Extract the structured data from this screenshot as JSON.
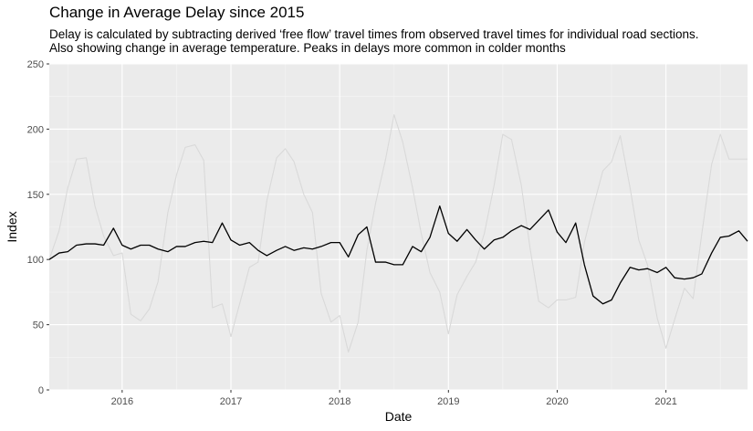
{
  "chart_data": {
    "type": "line",
    "title": "Change in Average Delay since 2015",
    "subtitle": [
      "Delay is calculated by subtracting derived ‘free flow’ travel times from observed travel times for individual road sections.",
      "Also showing change in average temperature. Peaks in delays more common in colder months"
    ],
    "xlabel": "Date",
    "ylabel": "Index",
    "xlim": [
      2015.33,
      2021.75
    ],
    "ylim": [
      0,
      250
    ],
    "x_ticks": [
      2016,
      2017,
      2018,
      2019,
      2020,
      2021
    ],
    "x_tick_labels": [
      "2016",
      "2017",
      "2018",
      "2019",
      "2020",
      "2021"
    ],
    "y_ticks": [
      0,
      50,
      100,
      150,
      200,
      250
    ],
    "y_tick_labels": [
      "0",
      "50",
      "100",
      "150",
      "200",
      "250"
    ],
    "grid": true,
    "background": "#ebebeb",
    "x": [
      2015.33,
      2015.42,
      2015.5,
      2015.58,
      2015.67,
      2015.75,
      2015.83,
      2015.92,
      2016.0,
      2016.08,
      2016.17,
      2016.25,
      2016.33,
      2016.42,
      2016.5,
      2016.58,
      2016.67,
      2016.75,
      2016.83,
      2016.92,
      2017.0,
      2017.08,
      2017.17,
      2017.25,
      2017.33,
      2017.42,
      2017.5,
      2017.58,
      2017.67,
      2017.75,
      2017.83,
      2017.92,
      2018.0,
      2018.08,
      2018.17,
      2018.25,
      2018.33,
      2018.42,
      2018.5,
      2018.58,
      2018.67,
      2018.75,
      2018.83,
      2018.92,
      2019.0,
      2019.08,
      2019.17,
      2019.25,
      2019.33,
      2019.42,
      2019.5,
      2019.58,
      2019.67,
      2019.75,
      2019.83,
      2019.92,
      2020.0,
      2020.08,
      2020.17,
      2020.25,
      2020.33,
      2020.42,
      2020.5,
      2020.58,
      2020.67,
      2020.75,
      2020.83,
      2020.92,
      2021.0,
      2021.08,
      2021.17,
      2021.25,
      2021.33,
      2021.42,
      2021.5,
      2021.58,
      2021.67,
      2021.75
    ],
    "series": [
      {
        "color": "#d9d9d9",
        "values": [
          100,
          122,
          155,
          177,
          178,
          141,
          118,
          103,
          105,
          58,
          53,
          62,
          83,
          136,
          165,
          186,
          188,
          176,
          63,
          66,
          41,
          66,
          94,
          98,
          145,
          178,
          185,
          175,
          150,
          136,
          74,
          52,
          57,
          29,
          52,
          107,
          143,
          176,
          211,
          190,
          155,
          120,
          90,
          75,
          43,
          73,
          87,
          98,
          120,
          157,
          196,
          192,
          157,
          109,
          68,
          63,
          69,
          69,
          71,
          113,
          140,
          168,
          175,
          195,
          155,
          115,
          96,
          55,
          32,
          54,
          78,
          70,
          120,
          173,
          196,
          177,
          177,
          177
        ]
      },
      {
        "color": "#000000",
        "values": [
          100,
          105,
          106,
          111,
          112,
          112,
          111,
          124,
          111,
          108,
          111,
          111,
          108,
          106,
          110,
          110,
          113,
          114,
          113,
          128,
          115,
          111,
          113,
          107,
          103,
          107,
          110,
          107,
          109,
          108,
          110,
          113,
          113,
          102,
          119,
          125,
          98,
          98,
          96,
          96,
          110,
          106,
          117,
          141,
          120,
          114,
          123,
          115,
          108,
          115,
          117,
          122,
          126,
          123,
          130,
          138,
          121,
          113,
          128,
          96,
          72,
          66,
          69,
          82,
          94,
          92,
          93,
          90,
          94,
          86,
          85,
          86,
          89,
          105,
          117,
          118,
          122,
          114
        ]
      }
    ]
  }
}
